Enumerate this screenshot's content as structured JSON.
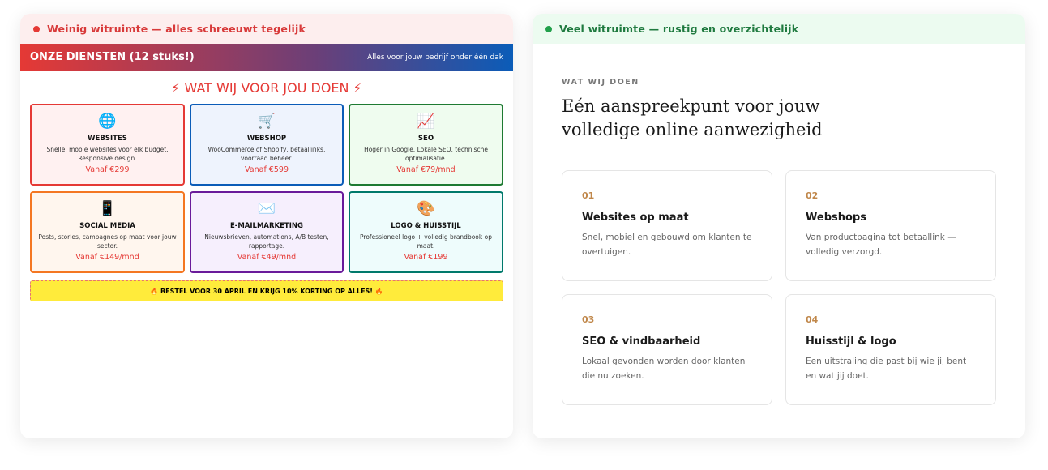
{
  "left": {
    "label": "Weinig witruimte — alles schreeuwt tegelijk",
    "bar_title": "ONZE DIENSTEN (12 stuks!)",
    "bar_sub": "Alles voor jouw bedrijf onder één dak",
    "title": "⚡ WAT WIJ VOOR JOU DOEN ⚡",
    "cards": [
      {
        "icon": "🌐",
        "name": "WEBSITES",
        "desc": "Snelle, mooie websites voor elk budget. Responsive design.",
        "price": "Vanaf €299",
        "border": "#e53935",
        "bg": "#fff1f1"
      },
      {
        "icon": "🛒",
        "name": "WEBSHOP",
        "desc": "WooCommerce of Shopify, betaallinks, voorraad beheer.",
        "price": "Vanaf €599",
        "border": "#0b5cb8",
        "bg": "#eef3fd"
      },
      {
        "icon": "📈",
        "name": "SEO",
        "desc": "Hoger in Google. Lokale SEO, technische optimalisatie.",
        "price": "Vanaf €79/mnd",
        "border": "#1e7a32",
        "bg": "#effcef"
      },
      {
        "icon": "📱",
        "name": "SOCIAL MEDIA",
        "desc": "Posts, stories, campagnes op maat voor jouw sector.",
        "price": "Vanaf €149/mnd",
        "border": "#f47722",
        "bg": "#fff6ee"
      },
      {
        "icon": "✉️",
        "name": "E-MAILMARKETING",
        "desc": "Nieuwsbrieven, automations, A/B testen, rapportage.",
        "price": "Vanaf €49/mnd",
        "border": "#6a1b9a",
        "bg": "#f6effd"
      },
      {
        "icon": "🎨",
        "name": "LOGO & HUISSTIJL",
        "desc": "Professioneel logo + volledig brandbook op maat.",
        "price": "Vanaf €199",
        "border": "#00796b",
        "bg": "#eefcfc"
      }
    ],
    "banner": "🔥 BESTEL VOOR 30 APRIL EN KRIJG 10% KORTING OP ALLES! 🔥"
  },
  "right": {
    "label": "Veel witruimte — rustig en overzichtelijk",
    "eyebrow": "WAT WIJ DOEN",
    "heading": "Eén aanspreekpunt voor jouw volledige online aanwezigheid",
    "cards": [
      {
        "num": "01",
        "name": "Websites op maat",
        "desc": "Snel, mobiel en gebouwd om klanten te overtuigen."
      },
      {
        "num": "02",
        "name": "Webshops",
        "desc": "Van productpagina tot betaallink — volledig verzorgd."
      },
      {
        "num": "03",
        "name": "SEO & vindbaarheid",
        "desc": "Lokaal gevonden worden door klanten die nu zoeken."
      },
      {
        "num": "04",
        "name": "Huisstijl & logo",
        "desc": "Een uitstraling die past bij wie jij bent en wat jij doet."
      }
    ]
  }
}
